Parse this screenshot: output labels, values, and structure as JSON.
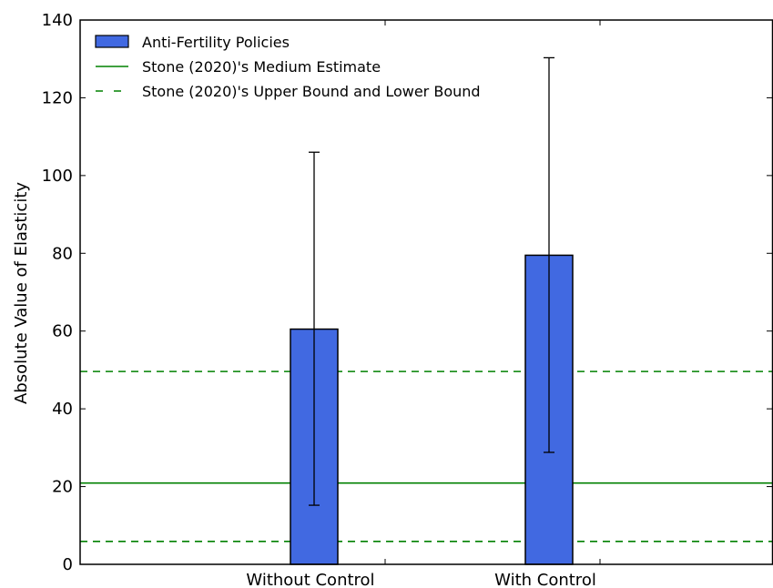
{
  "chart_data": {
    "type": "bar",
    "categories": [
      "Without Control",
      "With Control"
    ],
    "series": [
      {
        "name": "Anti-Fertility Policies",
        "values": [
          60.5,
          79.5
        ],
        "error_low": [
          15.2,
          28.8
        ],
        "error_high": [
          106.0,
          130.3
        ],
        "color": "#4169e1"
      }
    ],
    "reference_lines": [
      {
        "name": "Stone (2020)'s Medium Estimate",
        "value": 20.9,
        "style": "solid",
        "color": "#008000"
      },
      {
        "name": "Stone (2020)'s Upper Bound and Lower Bound",
        "values": [
          49.6,
          5.9
        ],
        "style": "dashed",
        "color": "#008000"
      }
    ],
    "ylabel": "Absolute Value of Elasticity",
    "xlabel": "",
    "ylim": [
      0,
      140
    ],
    "yticks": [
      0,
      20,
      40,
      60,
      80,
      100,
      120,
      140
    ],
    "grid": false,
    "legend_position": "top-left"
  }
}
